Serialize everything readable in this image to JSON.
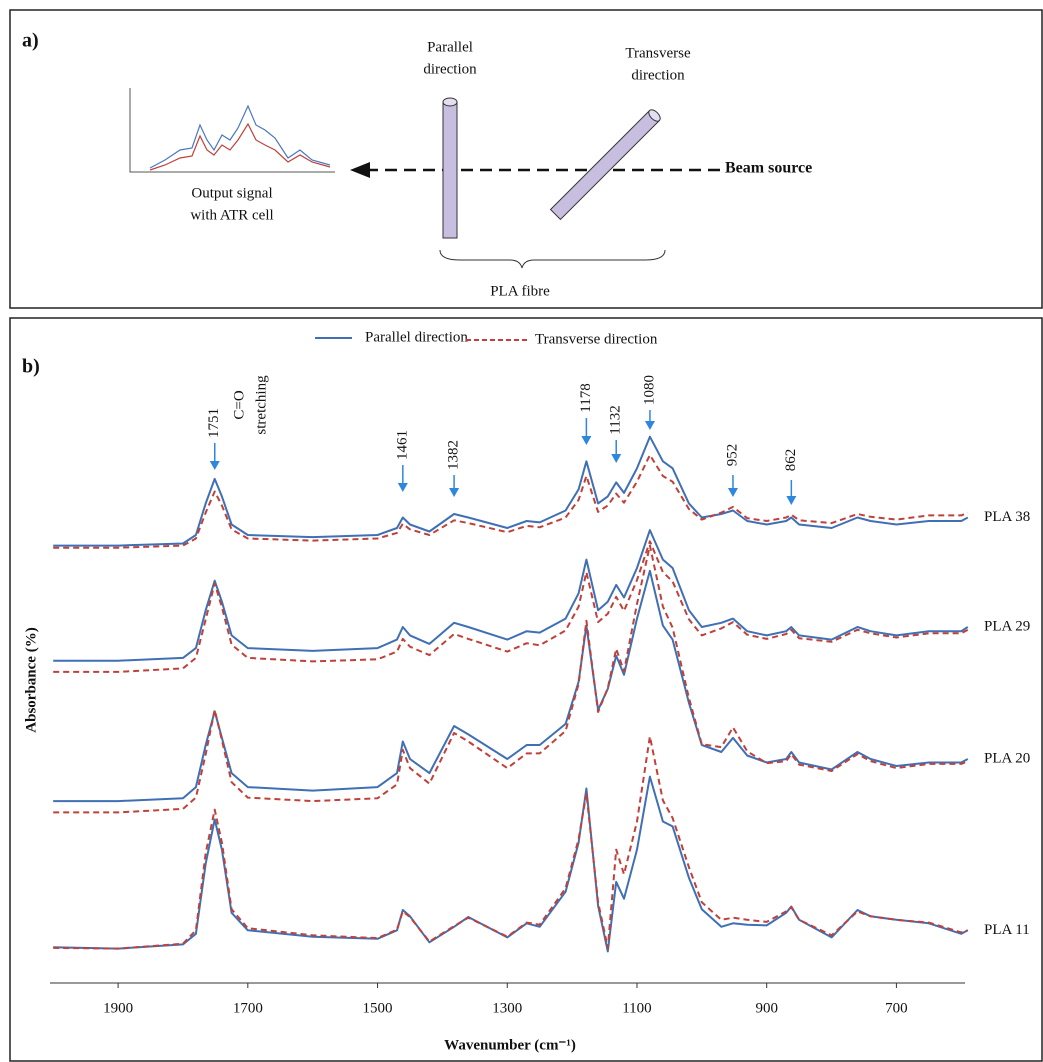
{
  "diagram": {
    "panel_label": "a)",
    "parallel_label": [
      "Parallel",
      "direction"
    ],
    "transverse_label": [
      "Transverse",
      "direction"
    ],
    "beam_label": "Beam source",
    "output_label": [
      "Output signal",
      "with ATR cell"
    ],
    "fibre_label": "PLA fibre"
  },
  "chart_data": {
    "type": "line",
    "panel_label": "b)",
    "ylabel": "Absorbance (%)",
    "xlabel": "Wavenumber (cm⁻¹)",
    "xlim": [
      2005,
      585
    ],
    "xticks": [
      1900,
      1700,
      1500,
      1300,
      1100,
      900,
      700
    ],
    "ylim": [
      7,
      100
    ],
    "legend": [
      {
        "name": "Parallel direction",
        "color": "#3f6fb5",
        "dash": false
      },
      {
        "name": "Transverse direction",
        "color": "#c0403a",
        "dash": true
      }
    ],
    "peak_labels": [
      1751,
      1461,
      1382,
      1178,
      1132,
      1080,
      952,
      862
    ],
    "annotation": [
      "C=O",
      "stretching"
    ],
    "x": [
      2000,
      1900,
      1800,
      1780,
      1765,
      1751,
      1740,
      1725,
      1700,
      1600,
      1500,
      1470,
      1461,
      1450,
      1420,
      1382,
      1360,
      1300,
      1270,
      1250,
      1210,
      1190,
      1178,
      1160,
      1145,
      1132,
      1120,
      1100,
      1080,
      1060,
      1045,
      1020,
      1000,
      970,
      952,
      930,
      900,
      870,
      862,
      850,
      800,
      760,
      740,
      700,
      650,
      600,
      590
    ],
    "samples": [
      {
        "label": "PLA 38",
        "parallel": [
          69.3,
          69.3,
          69.6,
          70.8,
          75.3,
          78.8,
          76.3,
          72.3,
          70.8,
          70.5,
          70.8,
          71.8,
          73.3,
          72.3,
          71.3,
          73.8,
          73.3,
          71.8,
          72.8,
          72.6,
          74.3,
          77.3,
          81.3,
          75.3,
          76.3,
          78.3,
          76.8,
          80.3,
          84.8,
          81.3,
          80.3,
          75.3,
          73.3,
          73.8,
          74.3,
          72.8,
          72.3,
          72.8,
          73.3,
          72.3,
          71.8,
          73.3,
          72.8,
          72.3,
          72.8,
          72.8,
          73.3
        ],
        "transverse": [
          69.0,
          69.0,
          69.3,
          70.3,
          74.0,
          77.0,
          75.0,
          71.6,
          70.3,
          70.0,
          70.3,
          71.1,
          72.4,
          71.6,
          70.8,
          72.9,
          72.5,
          71.2,
          72.1,
          71.9,
          73.3,
          75.8,
          79.2,
          74.1,
          75.0,
          76.7,
          75.4,
          78.4,
          82.2,
          79.2,
          78.4,
          74.5,
          73.0,
          74.0,
          74.8,
          73.2,
          72.8,
          73.3,
          73.7,
          72.9,
          72.5,
          73.8,
          73.4,
          73.0,
          73.6,
          73.6,
          74.0
        ]
      },
      {
        "label": "PLA 29",
        "parallel": [
          52.9,
          52.9,
          53.3,
          54.7,
          60.1,
          64.3,
          61.3,
          56.5,
          54.7,
          54.3,
          54.7,
          55.9,
          57.7,
          56.5,
          55.3,
          58.3,
          57.7,
          55.9,
          57.1,
          56.9,
          58.9,
          62.5,
          67.3,
          60.1,
          61.3,
          63.7,
          61.9,
          66.1,
          71.5,
          67.3,
          66.1,
          60.1,
          57.7,
          58.3,
          58.9,
          57.1,
          56.5,
          57.1,
          57.7,
          56.5,
          55.9,
          57.7,
          57.1,
          56.5,
          57.1,
          57.1,
          57.7
        ],
        "transverse": [
          51.3,
          51.3,
          51.8,
          53.3,
          58.8,
          63.9,
          60.5,
          55.2,
          53.3,
          52.8,
          53.1,
          54.2,
          56.0,
          54.9,
          53.7,
          56.7,
          56.0,
          54.2,
          55.4,
          55.1,
          57.2,
          60.6,
          65.5,
          58.4,
          59.6,
          62.0,
          60.0,
          64.4,
          69.9,
          65.5,
          64.2,
          58.8,
          56.5,
          57.5,
          58.4,
          56.6,
          56.0,
          56.7,
          57.3,
          56.1,
          55.6,
          57.3,
          56.8,
          56.2,
          56.8,
          56.8,
          57.3
        ]
      },
      {
        "label": "PLA 20",
        "parallel": [
          32.9,
          32.9,
          33.3,
          34.9,
          40.9,
          45.7,
          41.9,
          36.9,
          34.9,
          34.4,
          34.9,
          36.9,
          41.4,
          38.9,
          36.9,
          43.6,
          42.4,
          38.9,
          40.9,
          40.9,
          43.9,
          49.9,
          57.9,
          45.9,
          48.9,
          53.6,
          50.9,
          58.9,
          65.7,
          57.9,
          55.9,
          46.9,
          40.9,
          39.9,
          41.9,
          39.4,
          38.4,
          38.9,
          39.9,
          38.4,
          37.4,
          39.9,
          38.9,
          37.9,
          38.4,
          38.4,
          38.9
        ],
        "transverse": [
          31.3,
          31.3,
          31.8,
          33.4,
          39.6,
          45.9,
          41.6,
          35.6,
          33.4,
          32.9,
          33.3,
          35.3,
          40.2,
          37.6,
          35.4,
          42.6,
          41.4,
          37.6,
          39.7,
          39.7,
          42.9,
          49.6,
          58.6,
          45.6,
          49.0,
          54.6,
          51.4,
          61.0,
          69.3,
          60.6,
          57.6,
          47.6,
          41.0,
          40.6,
          43.4,
          40.0,
          38.3,
          38.6,
          39.6,
          38.1,
          37.2,
          39.6,
          38.6,
          37.6,
          38.2,
          38.2,
          38.6
        ]
      },
      {
        "label": "PLA 11",
        "parallel": [
          12.1,
          11.9,
          12.5,
          14,
          24,
          30.3,
          26,
          17,
          14.5,
          13.6,
          13.3,
          14.5,
          17.4,
          16.5,
          12.8,
          15,
          16.4,
          13.5,
          15.5,
          15,
          20,
          27,
          34.7,
          18,
          11.5,
          21.4,
          19,
          26,
          36.4,
          30,
          29.3,
          22,
          17.5,
          15,
          15.5,
          15.3,
          15.2,
          17,
          17.9,
          16,
          13.5,
          17.4,
          16.5,
          16,
          15.5,
          14,
          14.5
        ],
        "transverse": [
          12.0,
          11.9,
          12.6,
          14.5,
          25.5,
          31.7,
          27.0,
          17.5,
          14.8,
          13.8,
          13.4,
          14.6,
          17.2,
          16.4,
          12.9,
          15.1,
          16.3,
          13.6,
          15.6,
          15.3,
          20.5,
          27.5,
          34.0,
          18.5,
          12.0,
          26.0,
          22.5,
          30.0,
          42.1,
          33.0,
          30.5,
          23.5,
          18.5,
          16.0,
          16.3,
          16.0,
          15.7,
          17.2,
          17.8,
          16.0,
          13.8,
          17.2,
          16.5,
          16.0,
          15.6,
          14.2,
          14.5
        ]
      }
    ]
  }
}
